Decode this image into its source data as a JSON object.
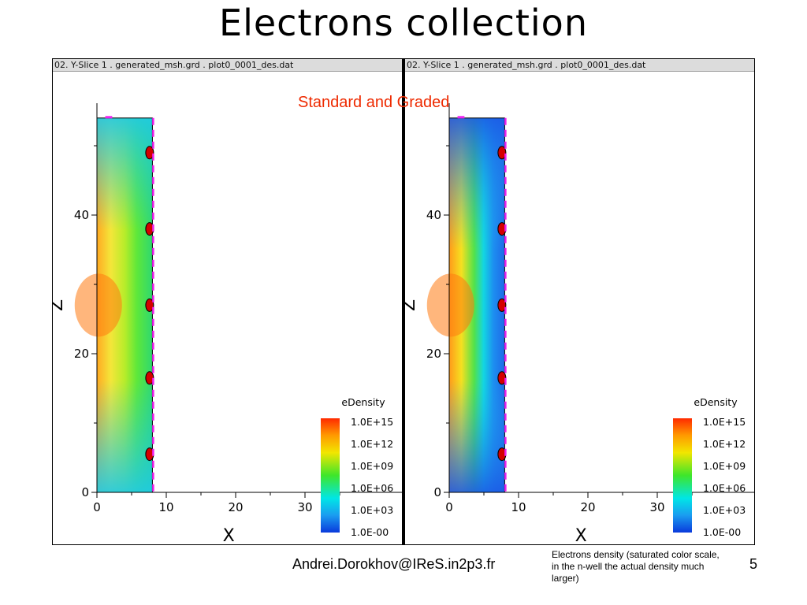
{
  "slide": {
    "title": "Electrons collection",
    "annotation": "Standard and Graded",
    "footer_email": "Andrei.Dorokhov@IReS.in2p3.fr",
    "footer_note": "Electrons density (saturated color scale, in the n-well the actual density much larger)",
    "page_number": "5"
  },
  "panels": [
    {
      "id": "standard",
      "header": "02. Y-Slice 1 . generated_msh.grd . plot0_0001_des.dat",
      "variant": "standard"
    },
    {
      "id": "graded",
      "header": "02. Y-Slice 1 . generated_msh.grd . plot0_0001_des.dat",
      "variant": "graded"
    }
  ],
  "chart_data": [
    {
      "type": "heatmap",
      "xlabel": "X",
      "ylabel": "Z",
      "xlim": [
        0,
        40
      ],
      "ylim": [
        0,
        54
      ],
      "x_ticks": [
        "0",
        "10",
        "20",
        "30"
      ],
      "y_ticks": [
        "0",
        "20",
        "40"
      ],
      "legend_title": "eDensity",
      "legend_labels": [
        "1.0E+15",
        "1.0E+12",
        "1.0E+09",
        "1.0E+06",
        "1.0E+03",
        "1.0E-00"
      ],
      "legend_placement": "bottom-right"
    },
    {
      "type": "heatmap",
      "xlabel": "X",
      "ylabel": "Z",
      "xlim": [
        0,
        40
      ],
      "ylim": [
        0,
        54
      ],
      "x_ticks": [
        "0",
        "10",
        "20",
        "30"
      ],
      "y_ticks": [
        "0",
        "20",
        "40"
      ],
      "legend_title": "eDensity",
      "legend_labels": [
        "1.0E+15",
        "1.0E+12",
        "1.0E+09",
        "1.0E+06",
        "1.0E+03",
        "1.0E-00"
      ],
      "legend_placement": "bottom-right"
    }
  ],
  "colors": {
    "annotation": "#ee2a00",
    "frame": "#000000",
    "header_bg": "#dcdcdc",
    "electrode": "#cc0000",
    "boundary_dash": "#ee22ee"
  }
}
